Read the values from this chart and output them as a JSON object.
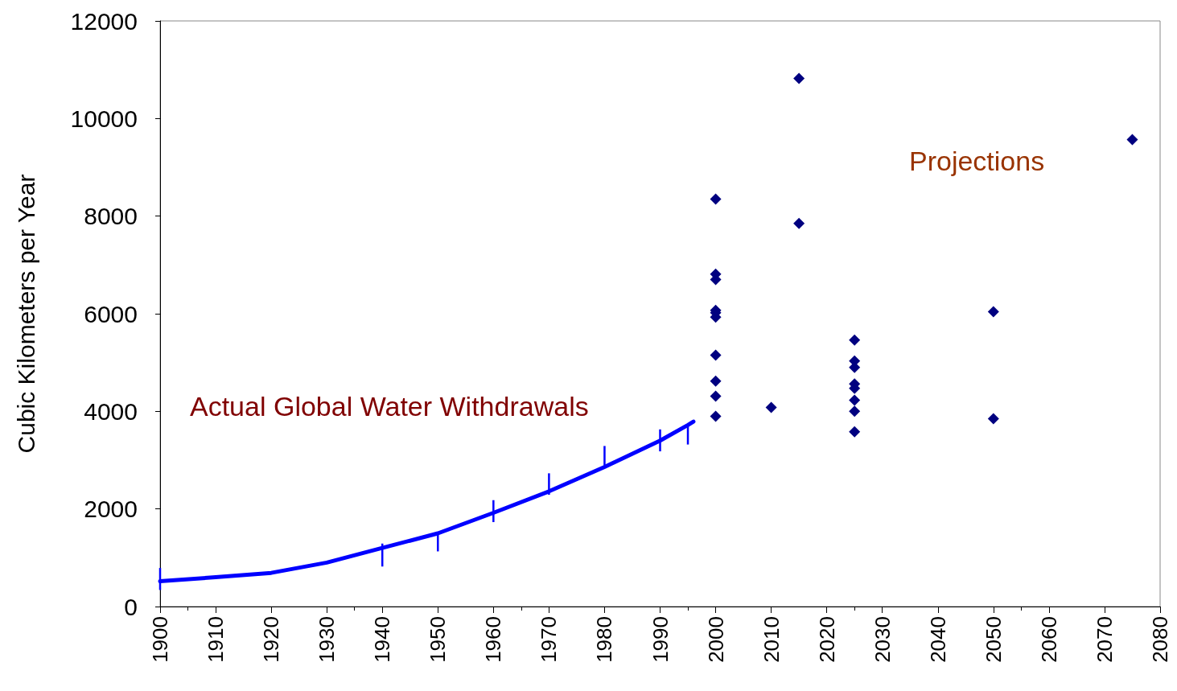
{
  "chart_data": {
    "type": "scatter",
    "ylabel": "Cubic Kilometers per Year",
    "annotations": [
      "Actual Global Water Withdrawals",
      "Projections"
    ],
    "xlim": [
      1900,
      2080
    ],
    "xticks": [
      1900,
      1910,
      1920,
      1930,
      1940,
      1950,
      1960,
      1970,
      1980,
      1990,
      2000,
      2010,
      2020,
      2030,
      2040,
      2050,
      2060,
      2070,
      2080
    ],
    "ylim": [
      0,
      12000
    ],
    "yticks": [
      0,
      2000,
      4000,
      6000,
      8000,
      10000,
      12000
    ],
    "grid": false,
    "series": [
      {
        "type": "line",
        "color": "#0000ff",
        "marker": "none",
        "line_style": "solid",
        "x": [
          1900,
          1910,
          1920,
          1930,
          1940,
          1950,
          1960,
          1970,
          1980,
          1990,
          1995,
          1996
        ],
        "values": [
          520,
          600,
          690,
          900,
          1200,
          1500,
          1920,
          2360,
          2860,
          3400,
          3720,
          3790
        ],
        "errors": [
          [
            340,
            790
          ],
          null,
          null,
          null,
          [
            820,
            1290
          ],
          [
            1130,
            1530
          ],
          [
            1730,
            2180
          ],
          [
            2290,
            2730
          ],
          [
            2890,
            3290
          ],
          [
            3180,
            3630
          ],
          [
            3320,
            3690
          ],
          null
        ]
      },
      {
        "color": "#000080",
        "marker": "diamond",
        "x": [
          2000,
          2000,
          2000,
          2000,
          2000,
          2000,
          2000,
          2000,
          2000,
          2000,
          2010,
          2015,
          2015,
          2025,
          2025,
          2025,
          2025,
          2025,
          2025,
          2025,
          2025,
          2050,
          2050,
          2075
        ],
        "values": [
          8350,
          6810,
          6700,
          6070,
          6020,
          5930,
          5150,
          4620,
          4310,
          3900,
          4080,
          10820,
          7850,
          5460,
          5030,
          4900,
          4560,
          4470,
          4230,
          4000,
          3580,
          6040,
          3850,
          9570
        ]
      }
    ]
  }
}
